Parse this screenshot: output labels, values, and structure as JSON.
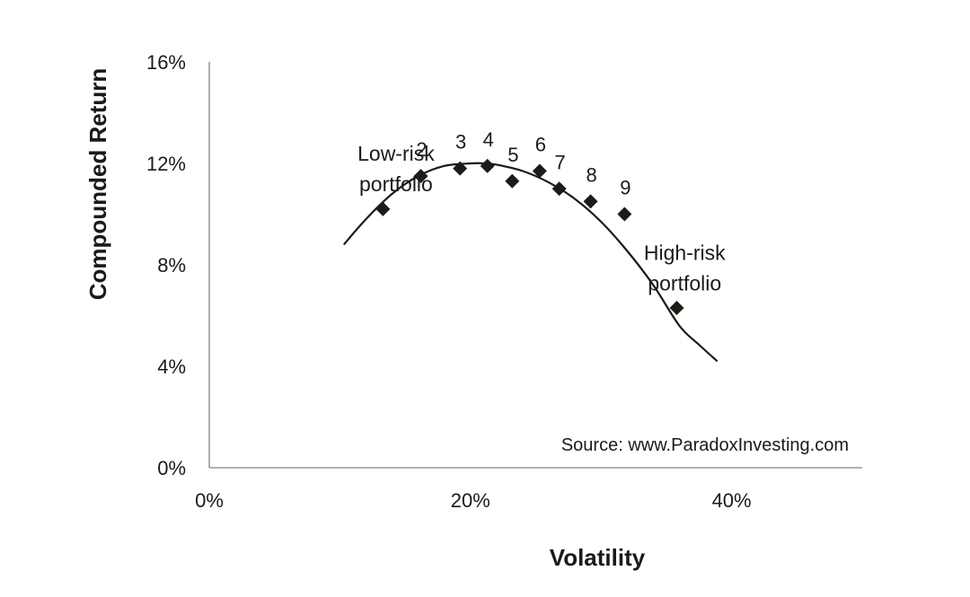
{
  "chart_data": {
    "type": "scatter",
    "xlabel": "Volatility",
    "ylabel": "Compounded Return",
    "xlim": [
      0,
      50
    ],
    "ylim": [
      0,
      16
    ],
    "x_ticks": [
      {
        "value": 0,
        "label": "0%"
      },
      {
        "value": 20,
        "label": "20%"
      },
      {
        "value": 40,
        "label": "40%"
      }
    ],
    "y_ticks": [
      {
        "value": 0,
        "label": "0%"
      },
      {
        "value": 4,
        "label": "4%"
      },
      {
        "value": 8,
        "label": "8%"
      },
      {
        "value": 12,
        "label": "12%"
      },
      {
        "value": 16,
        "label": "16%"
      }
    ],
    "points": [
      {
        "label": "",
        "x": 13.3,
        "y": 10.2
      },
      {
        "label": "2",
        "x": 16.2,
        "y": 11.5
      },
      {
        "label": "3",
        "x": 19.2,
        "y": 11.8
      },
      {
        "label": "4",
        "x": 21.3,
        "y": 11.9
      },
      {
        "label": "5",
        "x": 23.2,
        "y": 11.3
      },
      {
        "label": "6",
        "x": 25.3,
        "y": 11.7
      },
      {
        "label": "7",
        "x": 26.8,
        "y": 11.0
      },
      {
        "label": "8",
        "x": 29.2,
        "y": 10.5
      },
      {
        "label": "9",
        "x": 31.8,
        "y": 10.0
      },
      {
        "label": "",
        "x": 35.8,
        "y": 6.3
      }
    ],
    "trend_curve": {
      "x": [
        10.3,
        12,
        14,
        16,
        18,
        20,
        21,
        22,
        24,
        26,
        28,
        30,
        32,
        34,
        36,
        37.5,
        38.9
      ],
      "y": [
        8.8,
        9.8,
        10.8,
        11.5,
        11.9,
        12.0,
        12.0,
        11.95,
        11.7,
        11.25,
        10.6,
        9.7,
        8.55,
        7.2,
        5.6,
        4.85,
        4.2
      ]
    },
    "annotations": [
      {
        "lines": [
          "Low-risk",
          "portfolio"
        ],
        "anchor_x": 14.3,
        "anchor_y": 12.1
      },
      {
        "lines": [
          "High-risk",
          "portfolio"
        ],
        "anchor_x": 36.4,
        "anchor_y": 8.2
      }
    ],
    "source_text": "Source: www.ParadoxInvesting.com",
    "grid": false,
    "legend": "none",
    "colors": {
      "marker": "#1e1a16",
      "axis": "#999999",
      "curve": "#1e1a16"
    }
  }
}
